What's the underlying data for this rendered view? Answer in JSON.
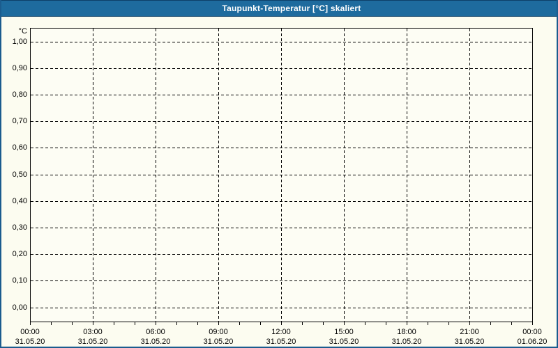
{
  "window": {
    "title": "Taupunkt-Temperatur [°C] skaliert"
  },
  "colors": {
    "title_bar": "#1e6b9e",
    "title_bar_edge": "#0d4068",
    "title_text": "#ffffff",
    "frame": "#1b5c8e",
    "background": "#fcfcf0",
    "plot_background": "#fdfdf4",
    "grid": "#000000",
    "label_text": "#000000"
  },
  "chart_data": {
    "type": "line",
    "title": "Taupunkt-Temperatur [°C] skaliert",
    "ylabel": "°C",
    "ylim": [
      0.0,
      1.0
    ],
    "y_tick_step": 0.1,
    "y_tick_labels": [
      "1,00",
      "0,90",
      "0,80",
      "0,70",
      "0,60",
      "0,50",
      "0,40",
      "0,30",
      "0,20",
      "0,10",
      "0,00"
    ],
    "x_major_ticks": [
      {
        "time": "00:00",
        "date": "31.05.20"
      },
      {
        "time": "03:00",
        "date": "31.05.20"
      },
      {
        "time": "06:00",
        "date": "31.05.20"
      },
      {
        "time": "09:00",
        "date": "31.05.20"
      },
      {
        "time": "12:00",
        "date": "31.05.20"
      },
      {
        "time": "15:00",
        "date": "31.05.20"
      },
      {
        "time": "18:00",
        "date": "31.05.20"
      },
      {
        "time": "21:00",
        "date": "31.05.20"
      },
      {
        "time": "00:00",
        "date": "01.06.20"
      }
    ],
    "minor_ticks_per_interval": 3,
    "grid": "dashed",
    "legend": "none",
    "series": []
  }
}
